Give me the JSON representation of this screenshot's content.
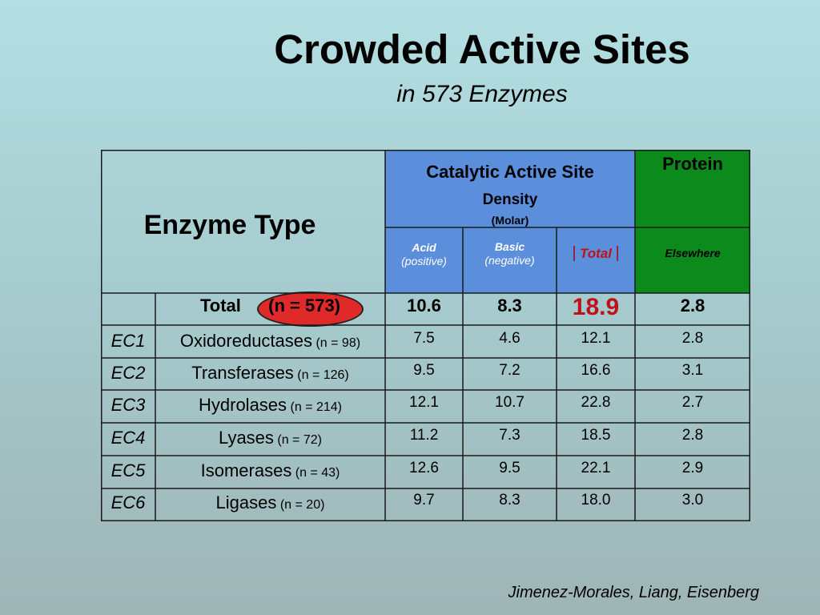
{
  "title": "Crowded Active Sites",
  "subtitle": "in 573 Enzymes",
  "credit": "Jimenez-Morales, Liang, Eisenberg",
  "table": {
    "enzyme_type_header": "Enzyme Type",
    "catalytic_header": "Catalytic Active Site",
    "density_label": "Density",
    "molar_label": "(Molar)",
    "protein_header": "Protein",
    "subheaders": {
      "acid": "Acid",
      "acid_note": "(positive)",
      "basic": "Basic",
      "basic_note": "(negative)",
      "total_left_bar": "|",
      "total": "Total",
      "total_right_bar": "|",
      "elsewhere": "Elsewhere"
    },
    "total_row": {
      "label": "Total",
      "n": "(n = 573)",
      "acid": "10.6",
      "basic": "8.3",
      "total": "18.9",
      "elsewhere": "2.8"
    },
    "rows": [
      {
        "ec": "EC1",
        "name": "Oxidoreductases",
        "n": "(n = 98)",
        "acid": "7.5",
        "basic": "4.6",
        "total": "12.1",
        "elsewhere": "2.8"
      },
      {
        "ec": "EC2",
        "name": "Transferases",
        "n": "(n = 126)",
        "acid": "9.5",
        "basic": "7.2",
        "total": "16.6",
        "elsewhere": "3.1"
      },
      {
        "ec": "EC3",
        "name": "Hydrolases",
        "n": "(n = 214)",
        "acid": "12.1",
        "basic": "10.7",
        "total": "22.8",
        "elsewhere": "2.7"
      },
      {
        "ec": "EC4",
        "name": "Lyases",
        "n": "(n = 72)",
        "acid": "11.2",
        "basic": "7.3",
        "total": "18.5",
        "elsewhere": "2.8"
      },
      {
        "ec": "EC5",
        "name": "Isomerases",
        "n": "(n = 43)",
        "acid": "12.6",
        "basic": "9.5",
        "total": "22.1",
        "elsewhere": "2.9"
      },
      {
        "ec": "EC6",
        "name": "Ligases",
        "n": "(n = 20)",
        "acid": "9.7",
        "basic": "8.3",
        "total": "18.0",
        "elsewhere": "3.0"
      }
    ]
  },
  "colors": {
    "catalytic_header_bg": "#5b8fdb",
    "protein_header_bg": "#0d8a1c",
    "highlight_oval": "#e02a2a",
    "highlight_total_text": "#c0101a"
  }
}
